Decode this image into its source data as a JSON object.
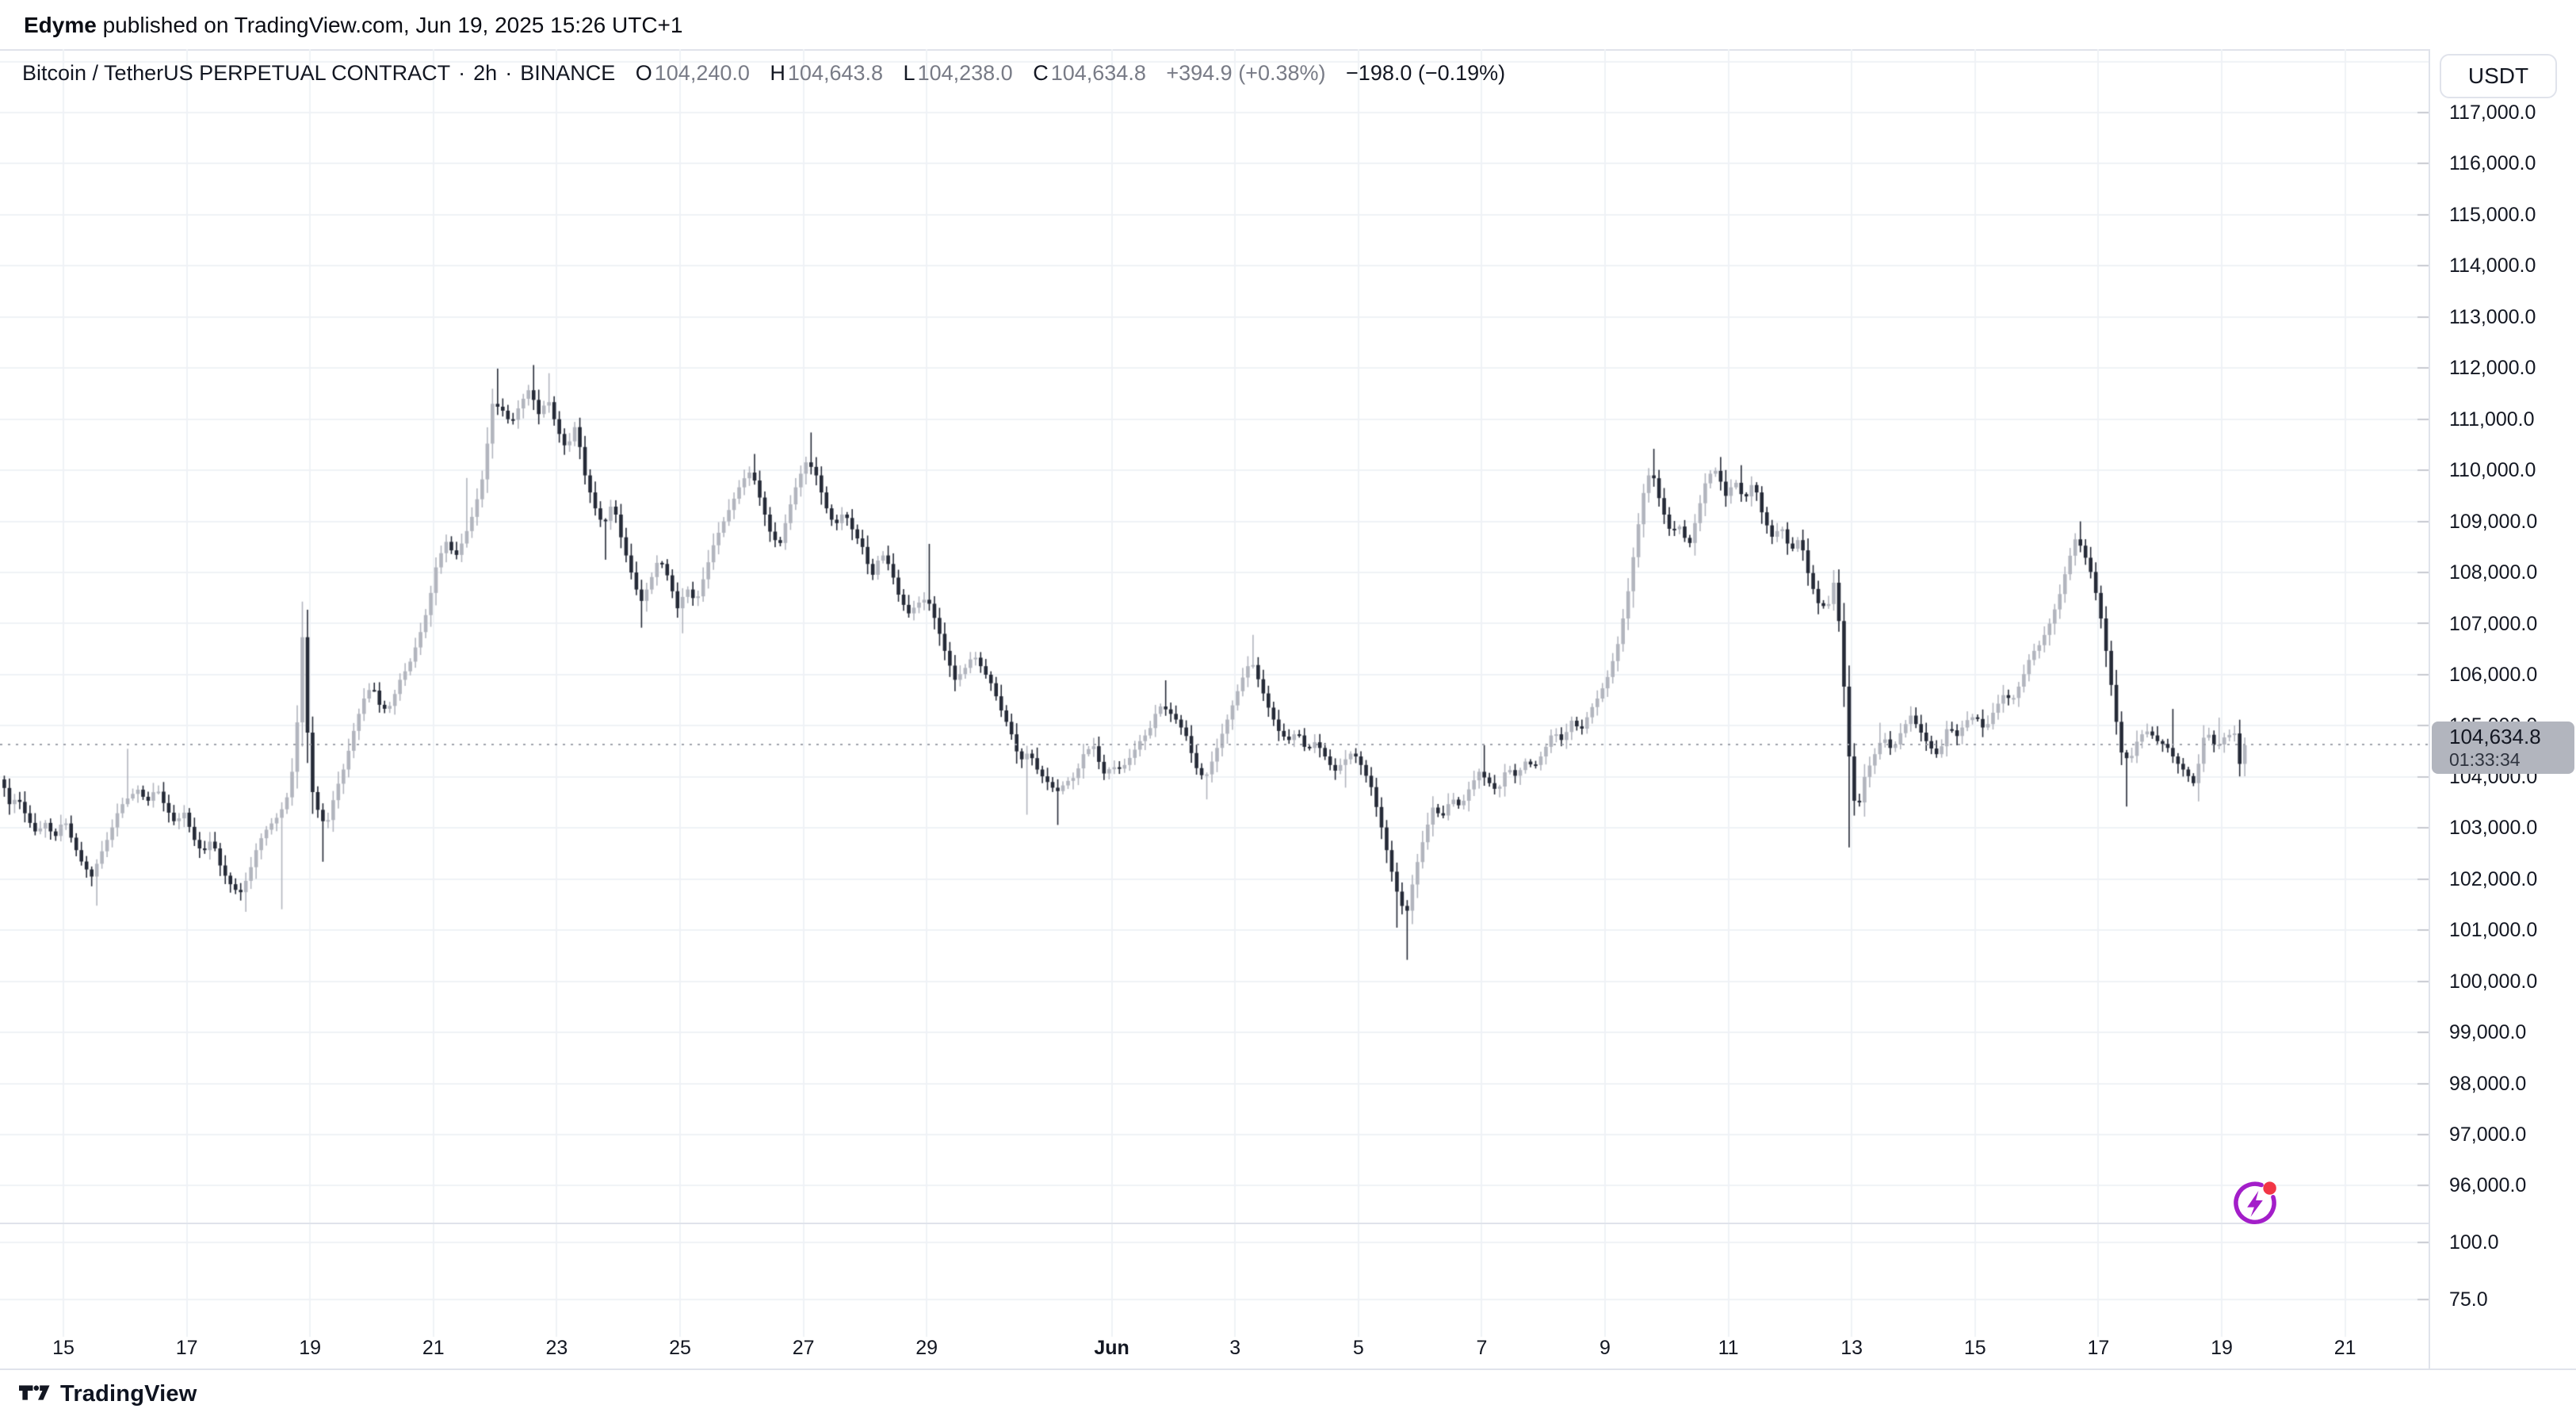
{
  "publish_header": {
    "author": "Edyme",
    "text": " published on TradingView.com, Jun 19, 2025 15:26 UTC+1"
  },
  "legend": {
    "symbol": "Bitcoin / TetherUS PERPETUAL CONTRACT",
    "separator": "·",
    "interval": "2h",
    "exchange": "BINANCE",
    "open_label": "O",
    "open": "104,240.0",
    "high_label": "H",
    "high": "104,643.8",
    "low_label": "L",
    "low": "104,238.0",
    "close_label": "C",
    "close": "104,634.8",
    "change": "+394.9 (+0.38%)",
    "change_secondary": "−198.0 (−0.19%)"
  },
  "price_axis": {
    "currency_button": "USDT",
    "tick_labels": [
      "117,000.0",
      "116,000.0",
      "115,000.0",
      "114,000.0",
      "113,000.0",
      "112,000.0",
      "111,000.0",
      "110,000.0",
      "109,000.0",
      "108,000.0",
      "107,000.0",
      "106,000.0",
      "105,000.0",
      "104,000.0",
      "103,000.0",
      "102,000.0",
      "101,000.0",
      "100,000.0",
      "99,000.0",
      "98,000.0",
      "97,000.0",
      "96,000.0"
    ],
    "sub_pane_labels": [
      "100.0",
      "75.0"
    ],
    "last_price_label": "104,634.8",
    "countdown": "01:33:34"
  },
  "time_axis": {
    "labels": [
      {
        "text": "15",
        "day": 1
      },
      {
        "text": "17",
        "day": 3
      },
      {
        "text": "19",
        "day": 5
      },
      {
        "text": "21",
        "day": 7
      },
      {
        "text": "23",
        "day": 9
      },
      {
        "text": "25",
        "day": 11
      },
      {
        "text": "27",
        "day": 13
      },
      {
        "text": "29",
        "day": 15
      },
      {
        "text": "Jun",
        "day": 18,
        "bold": true
      },
      {
        "text": "3",
        "day": 20
      },
      {
        "text": "5",
        "day": 22
      },
      {
        "text": "7",
        "day": 24
      },
      {
        "text": "9",
        "day": 26
      },
      {
        "text": "11",
        "day": 28
      },
      {
        "text": "13",
        "day": 30
      },
      {
        "text": "15",
        "day": 32
      },
      {
        "text": "17",
        "day": 34
      },
      {
        "text": "19",
        "day": 36
      },
      {
        "text": "21",
        "day": 38
      }
    ]
  },
  "footer": {
    "brand": "TradingView"
  },
  "icons": {
    "flash_icon_color": "#A31EC9",
    "flash_badge_color": "#F23645",
    "logo_color": "#131722"
  },
  "chart_data": {
    "type": "candlestick",
    "title": "Bitcoin / TetherUS PERPETUAL CONTRACT · 2h · BINANCE",
    "interval_hours": 2,
    "time_span_days": 36.42,
    "x_axis": {
      "first_label": "May 15",
      "last_label": "Jun 21",
      "gridline_days": [
        1,
        3,
        5,
        7,
        9,
        11,
        13,
        15,
        18,
        20,
        22,
        24,
        26,
        28,
        30,
        32,
        34,
        36,
        38
      ]
    },
    "y_axis": {
      "max_labeled": 117000,
      "min_labeled": 96000,
      "step": 1000,
      "currency": "USDT"
    },
    "sub_pane_ticks": [
      100.0,
      75.0
    ],
    "current_price": 104634.8,
    "countdown": "01:33:34",
    "last_candle": {
      "open": 104240.0,
      "high": 104643.8,
      "low": 104238.0,
      "close": 104634.8,
      "change": 394.9,
      "change_pct": 0.38,
      "change_secondary": -198.0,
      "change_secondary_pct": -0.19
    },
    "colors": {
      "up": "#B2B5BE",
      "down": "#252A37",
      "grid": "#EFF2F6",
      "dotted_line": "#9FA2AB",
      "badge_bg": "#B2B5BE"
    },
    "price_path": [
      [
        0.05,
        103950
      ],
      [
        0.15,
        103450
      ],
      [
        0.3,
        103600
      ],
      [
        0.45,
        103200
      ],
      [
        0.6,
        102900
      ],
      [
        0.75,
        103100
      ],
      [
        0.9,
        102800
      ],
      [
        1.05,
        103200
      ],
      [
        1.2,
        102700
      ],
      [
        1.35,
        102300
      ],
      [
        1.5,
        102050
      ],
      [
        1.65,
        102500
      ],
      [
        1.8,
        102900
      ],
      [
        1.95,
        103400
      ],
      [
        2.1,
        103600
      ],
      [
        2.25,
        103750
      ],
      [
        2.4,
        103500
      ],
      [
        2.55,
        103800
      ],
      [
        2.7,
        103400
      ],
      [
        2.85,
        103100
      ],
      [
        3.0,
        103300
      ],
      [
        3.15,
        102800
      ],
      [
        3.3,
        102500
      ],
      [
        3.45,
        102800
      ],
      [
        3.6,
        102200
      ],
      [
        3.75,
        101900
      ],
      [
        3.9,
        101700
      ],
      [
        4.05,
        102100
      ],
      [
        4.2,
        102700
      ],
      [
        4.35,
        103000
      ],
      [
        4.5,
        103200
      ],
      [
        4.65,
        103500
      ],
      [
        4.8,
        104400
      ],
      [
        4.92,
        106800
      ],
      [
        5.04,
        103900
      ],
      [
        5.15,
        103400
      ],
      [
        5.3,
        103000
      ],
      [
        5.45,
        103700
      ],
      [
        5.6,
        104200
      ],
      [
        5.75,
        104900
      ],
      [
        5.9,
        105500
      ],
      [
        6.05,
        105800
      ],
      [
        6.2,
        105300
      ],
      [
        6.35,
        105400
      ],
      [
        6.5,
        105900
      ],
      [
        6.65,
        106200
      ],
      [
        6.8,
        106700
      ],
      [
        6.95,
        107300
      ],
      [
        7.1,
        108200
      ],
      [
        7.25,
        108600
      ],
      [
        7.4,
        108300
      ],
      [
        7.55,
        108700
      ],
      [
        7.7,
        109200
      ],
      [
        7.85,
        109900
      ],
      [
        8.0,
        111300
      ],
      [
        8.15,
        111200
      ],
      [
        8.3,
        110900
      ],
      [
        8.45,
        111300
      ],
      [
        8.6,
        111600
      ],
      [
        8.75,
        111100
      ],
      [
        8.9,
        111400
      ],
      [
        9.05,
        110800
      ],
      [
        9.2,
        110400
      ],
      [
        9.35,
        110900
      ],
      [
        9.5,
        109900
      ],
      [
        9.65,
        109300
      ],
      [
        9.8,
        108900
      ],
      [
        9.95,
        109400
      ],
      [
        10.1,
        108600
      ],
      [
        10.25,
        108000
      ],
      [
        10.4,
        107400
      ],
      [
        10.55,
        107800
      ],
      [
        10.7,
        108300
      ],
      [
        10.85,
        107900
      ],
      [
        11.0,
        107300
      ],
      [
        11.15,
        107700
      ],
      [
        11.3,
        107400
      ],
      [
        11.45,
        108000
      ],
      [
        11.6,
        108600
      ],
      [
        11.75,
        109000
      ],
      [
        11.9,
        109400
      ],
      [
        12.05,
        109800
      ],
      [
        12.2,
        110000
      ],
      [
        12.35,
        109400
      ],
      [
        12.5,
        108800
      ],
      [
        12.65,
        108500
      ],
      [
        12.8,
        109200
      ],
      [
        12.95,
        109800
      ],
      [
        13.1,
        110200
      ],
      [
        13.25,
        109900
      ],
      [
        13.4,
        109300
      ],
      [
        13.55,
        108900
      ],
      [
        13.7,
        109200
      ],
      [
        13.85,
        108800
      ],
      [
        14.0,
        108500
      ],
      [
        14.15,
        107900
      ],
      [
        14.3,
        108400
      ],
      [
        14.45,
        108100
      ],
      [
        14.6,
        107500
      ],
      [
        14.75,
        107200
      ],
      [
        14.9,
        107400
      ],
      [
        15.05,
        107500
      ],
      [
        15.2,
        107000
      ],
      [
        15.35,
        106400
      ],
      [
        15.5,
        105900
      ],
      [
        15.65,
        106100
      ],
      [
        15.8,
        106400
      ],
      [
        15.95,
        106100
      ],
      [
        16.1,
        105800
      ],
      [
        16.25,
        105300
      ],
      [
        16.4,
        104900
      ],
      [
        16.55,
        104300
      ],
      [
        16.7,
        104500
      ],
      [
        16.85,
        104100
      ],
      [
        17.0,
        103900
      ],
      [
        17.15,
        103700
      ],
      [
        17.3,
        103900
      ],
      [
        17.45,
        104000
      ],
      [
        17.6,
        104500
      ],
      [
        17.75,
        104600
      ],
      [
        17.9,
        104050
      ],
      [
        18.05,
        104200
      ],
      [
        18.2,
        104150
      ],
      [
        18.35,
        104400
      ],
      [
        18.5,
        104700
      ],
      [
        18.65,
        104900
      ],
      [
        18.8,
        105400
      ],
      [
        18.95,
        105300
      ],
      [
        19.1,
        105100
      ],
      [
        19.25,
        104800
      ],
      [
        19.4,
        104200
      ],
      [
        19.55,
        103950
      ],
      [
        19.7,
        104400
      ],
      [
        19.85,
        104900
      ],
      [
        20.0,
        105400
      ],
      [
        20.15,
        105900
      ],
      [
        20.3,
        106300
      ],
      [
        20.45,
        105800
      ],
      [
        20.6,
        105300
      ],
      [
        20.75,
        104900
      ],
      [
        20.9,
        104700
      ],
      [
        21.05,
        104900
      ],
      [
        21.2,
        104500
      ],
      [
        21.35,
        104700
      ],
      [
        21.5,
        104400
      ],
      [
        21.65,
        104100
      ],
      [
        21.8,
        104300
      ],
      [
        21.95,
        104500
      ],
      [
        22.1,
        104200
      ],
      [
        22.25,
        103800
      ],
      [
        22.4,
        103100
      ],
      [
        22.55,
        102300
      ],
      [
        22.7,
        101600
      ],
      [
        22.82,
        101300
      ],
      [
        22.95,
        102100
      ],
      [
        23.1,
        102800
      ],
      [
        23.25,
        103400
      ],
      [
        23.4,
        103200
      ],
      [
        23.55,
        103600
      ],
      [
        23.7,
        103400
      ],
      [
        23.85,
        103800
      ],
      [
        24.0,
        104100
      ],
      [
        24.15,
        103900
      ],
      [
        24.3,
        103700
      ],
      [
        24.45,
        104200
      ],
      [
        24.6,
        104000
      ],
      [
        24.75,
        104300
      ],
      [
        24.9,
        104200
      ],
      [
        25.05,
        104500
      ],
      [
        25.2,
        104900
      ],
      [
        25.35,
        104700
      ],
      [
        25.5,
        105100
      ],
      [
        25.65,
        104900
      ],
      [
        25.8,
        105300
      ],
      [
        25.95,
        105600
      ],
      [
        26.1,
        106000
      ],
      [
        26.25,
        106600
      ],
      [
        26.4,
        107500
      ],
      [
        26.55,
        108700
      ],
      [
        26.7,
        109800
      ],
      [
        26.8,
        110000
      ],
      [
        26.95,
        109300
      ],
      [
        27.1,
        108800
      ],
      [
        27.25,
        108900
      ],
      [
        27.4,
        108500
      ],
      [
        27.55,
        109200
      ],
      [
        27.7,
        109900
      ],
      [
        27.85,
        110000
      ],
      [
        28.0,
        109500
      ],
      [
        28.15,
        109800
      ],
      [
        28.3,
        109400
      ],
      [
        28.45,
        109800
      ],
      [
        28.6,
        109100
      ],
      [
        28.75,
        108700
      ],
      [
        28.9,
        108900
      ],
      [
        29.05,
        108400
      ],
      [
        29.2,
        108700
      ],
      [
        29.35,
        107900
      ],
      [
        29.5,
        107400
      ],
      [
        29.65,
        107300
      ],
      [
        29.75,
        107800
      ],
      [
        29.85,
        106900
      ],
      [
        29.95,
        105200
      ],
      [
        30.05,
        103600
      ],
      [
        30.15,
        103400
      ],
      [
        30.25,
        104000
      ],
      [
        30.4,
        104400
      ],
      [
        30.55,
        104800
      ],
      [
        30.7,
        104500
      ],
      [
        30.85,
        104900
      ],
      [
        31.0,
        105200
      ],
      [
        31.15,
        104900
      ],
      [
        31.3,
        104600
      ],
      [
        31.45,
        104400
      ],
      [
        31.6,
        105000
      ],
      [
        31.75,
        104800
      ],
      [
        31.9,
        105100
      ],
      [
        32.05,
        105200
      ],
      [
        32.2,
        104900
      ],
      [
        32.35,
        105300
      ],
      [
        32.5,
        105600
      ],
      [
        32.65,
        105500
      ],
      [
        32.8,
        105900
      ],
      [
        32.95,
        106400
      ],
      [
        33.1,
        106600
      ],
      [
        33.25,
        107000
      ],
      [
        33.4,
        107500
      ],
      [
        33.55,
        108200
      ],
      [
        33.68,
        108700
      ],
      [
        33.8,
        108400
      ],
      [
        33.95,
        107900
      ],
      [
        34.1,
        107000
      ],
      [
        34.25,
        105800
      ],
      [
        34.4,
        104500
      ],
      [
        34.55,
        104300
      ],
      [
        34.7,
        104800
      ],
      [
        34.85,
        104900
      ],
      [
        35.0,
        104700
      ],
      [
        35.15,
        104600
      ],
      [
        35.3,
        104300
      ],
      [
        35.45,
        104100
      ],
      [
        35.6,
        103850
      ],
      [
        35.78,
        104950
      ],
      [
        35.95,
        104550
      ],
      [
        36.1,
        104800
      ],
      [
        36.25,
        104850
      ],
      [
        36.33,
        104240
      ],
      [
        36.42,
        104634.8
      ]
    ],
    "wick_spikes": [
      [
        1.5,
        101480,
        "low"
      ],
      [
        2.06,
        104550,
        "high"
      ],
      [
        3.95,
        101360,
        "low"
      ],
      [
        4.55,
        101410,
        "low"
      ],
      [
        4.9,
        107430,
        "high"
      ],
      [
        5.2,
        102340,
        "low"
      ],
      [
        7.55,
        109850,
        "high"
      ],
      [
        8.05,
        111990,
        "high"
      ],
      [
        8.6,
        112060,
        "high"
      ],
      [
        8.9,
        111900,
        "high"
      ],
      [
        9.8,
        108250,
        "low"
      ],
      [
        10.4,
        106920,
        "low"
      ],
      [
        11.0,
        106810,
        "low"
      ],
      [
        12.2,
        110320,
        "high"
      ],
      [
        13.15,
        110740,
        "high"
      ],
      [
        15.05,
        108560,
        "high"
      ],
      [
        16.6,
        103260,
        "low"
      ],
      [
        17.15,
        103060,
        "low"
      ],
      [
        18.85,
        105890,
        "high"
      ],
      [
        19.55,
        103560,
        "low"
      ],
      [
        20.3,
        106780,
        "high"
      ],
      [
        21.75,
        103790,
        "low"
      ],
      [
        22.6,
        101050,
        "low"
      ],
      [
        22.78,
        100420,
        "low"
      ],
      [
        24.0,
        104620,
        "high"
      ],
      [
        26.1,
        106350,
        "high"
      ],
      [
        26.8,
        110420,
        "high"
      ],
      [
        27.85,
        110260,
        "high"
      ],
      [
        28.2,
        110100,
        "high"
      ],
      [
        29.95,
        102620,
        "low"
      ],
      [
        30.45,
        105060,
        "high"
      ],
      [
        33.68,
        109000,
        "high"
      ],
      [
        34.42,
        103420,
        "low"
      ],
      [
        35.2,
        105330,
        "high"
      ],
      [
        35.65,
        103520,
        "low"
      ],
      [
        35.95,
        105160,
        "high"
      ]
    ]
  }
}
